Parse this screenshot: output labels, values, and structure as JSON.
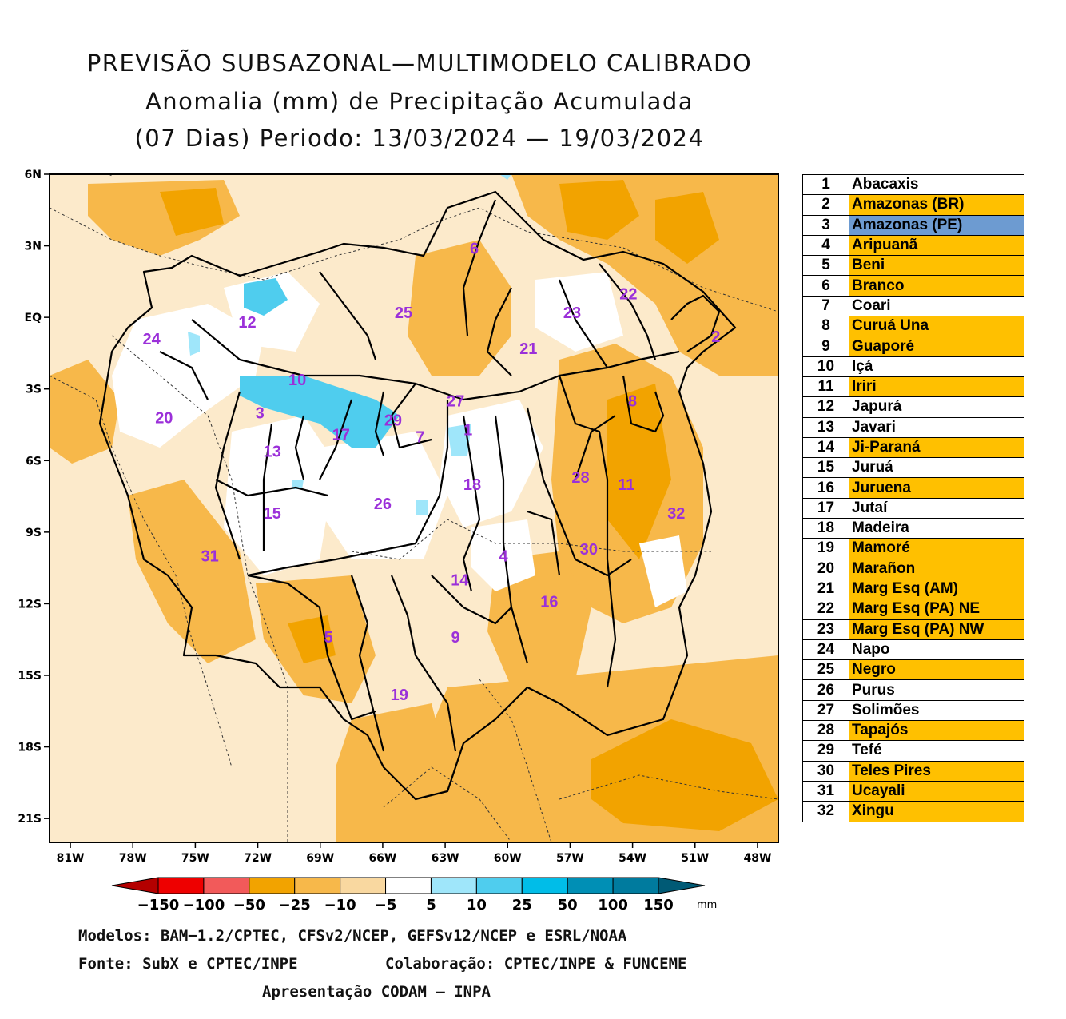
{
  "title": {
    "line1": "PREVISÃO SUBSAZONAL—MULTIMODELO CALIBRADO",
    "line2": "Anomalia (mm) de Precipitação Acumulada",
    "line3": "(07 Dias) Periodo: 13/03/2024 — 19/03/2024"
  },
  "axes": {
    "lat_labels": [
      "6N",
      "3N",
      "EQ",
      "3S",
      "6S",
      "9S",
      "12S",
      "15S",
      "18S",
      "21S"
    ],
    "lon_labels": [
      "81W",
      "78W",
      "75W",
      "72W",
      "69W",
      "66W",
      "63W",
      "60W",
      "57W",
      "54W",
      "51W",
      "48W"
    ],
    "lat_range": [
      6,
      -22
    ],
    "lon_range": [
      -82,
      -47
    ]
  },
  "colorbar": {
    "unit": "mm",
    "ticks": [
      "−150",
      "−100",
      "−50",
      "−25",
      "−10",
      "−5",
      "5",
      "10",
      "25",
      "50",
      "100",
      "150"
    ],
    "colors": [
      "#b40000",
      "#ee0000",
      "#f25a5a",
      "#f2a300",
      "#f7b84a",
      "#f9d8a0",
      "#ffffff",
      "#9fe6fa",
      "#4fcdee",
      "#00bde8",
      "#008fb5",
      "#007b9e",
      "#005a75"
    ]
  },
  "map_labels": [
    {
      "n": "1",
      "lon": -61.9,
      "lat": -4.7
    },
    {
      "n": "2",
      "lon": -50.0,
      "lat": -0.8
    },
    {
      "n": "3",
      "lon": -71.9,
      "lat": -4.0
    },
    {
      "n": "4",
      "lon": -60.2,
      "lat": -10.0
    },
    {
      "n": "5",
      "lon": -68.6,
      "lat": -13.4
    },
    {
      "n": "6",
      "lon": -61.6,
      "lat": 2.9
    },
    {
      "n": "7",
      "lon": -64.2,
      "lat": -5.0
    },
    {
      "n": "8",
      "lon": -54.0,
      "lat": -3.5
    },
    {
      "n": "9",
      "lon": -62.5,
      "lat": -13.4
    },
    {
      "n": "10",
      "lon": -70.1,
      "lat": -2.6
    },
    {
      "n": "11",
      "lon": -54.3,
      "lat": -7.0
    },
    {
      "n": "12",
      "lon": -72.5,
      "lat": -0.2
    },
    {
      "n": "13",
      "lon": -71.3,
      "lat": -5.6
    },
    {
      "n": "14",
      "lon": -62.3,
      "lat": -11.0
    },
    {
      "n": "15",
      "lon": -71.3,
      "lat": -8.2
    },
    {
      "n": "16",
      "lon": -58.0,
      "lat": -11.9
    },
    {
      "n": "17",
      "lon": -68.0,
      "lat": -4.9
    },
    {
      "n": "18",
      "lon": -61.7,
      "lat": -7.0
    },
    {
      "n": "19",
      "lon": -65.2,
      "lat": -15.8
    },
    {
      "n": "20",
      "lon": -76.5,
      "lat": -4.2
    },
    {
      "n": "21",
      "lon": -59.0,
      "lat": -1.3
    },
    {
      "n": "22",
      "lon": -54.2,
      "lat": 1.0
    },
    {
      "n": "23",
      "lon": -56.9,
      "lat": 0.2
    },
    {
      "n": "24",
      "lon": -77.1,
      "lat": -0.9
    },
    {
      "n": "25",
      "lon": -65.0,
      "lat": 0.2
    },
    {
      "n": "26",
      "lon": -66.0,
      "lat": -7.8
    },
    {
      "n": "27",
      "lon": -62.5,
      "lat": -3.5
    },
    {
      "n": "28",
      "lon": -56.5,
      "lat": -6.7
    },
    {
      "n": "29",
      "lon": -65.5,
      "lat": -4.3
    },
    {
      "n": "30",
      "lon": -56.1,
      "lat": -9.7
    },
    {
      "n": "31",
      "lon": -74.3,
      "lat": -10.0
    },
    {
      "n": "32",
      "lon": -51.9,
      "lat": -8.2
    }
  ],
  "legend": [
    {
      "n": "1",
      "name": "Abacaxis",
      "color": "#ffffff"
    },
    {
      "n": "2",
      "name": "Amazonas (BR)",
      "color": "#ffc000"
    },
    {
      "n": "3",
      "name": "Amazonas (PE)",
      "color": "#6d9bd1"
    },
    {
      "n": "4",
      "name": "Aripuanã",
      "color": "#ffc000"
    },
    {
      "n": "5",
      "name": "Beni",
      "color": "#ffc000"
    },
    {
      "n": "6",
      "name": "Branco",
      "color": "#ffc000"
    },
    {
      "n": "7",
      "name": "Coari",
      "color": "#ffffff"
    },
    {
      "n": "8",
      "name": "Curuá Una",
      "color": "#ffc000"
    },
    {
      "n": "9",
      "name": "Guaporé",
      "color": "#ffc000"
    },
    {
      "n": "10",
      "name": "Içá",
      "color": "#ffffff"
    },
    {
      "n": "11",
      "name": "Iriri",
      "color": "#ffc000"
    },
    {
      "n": "12",
      "name": "Japurá",
      "color": "#ffffff"
    },
    {
      "n": "13",
      "name": "Javari",
      "color": "#ffffff"
    },
    {
      "n": "14",
      "name": "Ji-Paraná",
      "color": "#ffc000"
    },
    {
      "n": "15",
      "name": "Juruá",
      "color": "#ffffff"
    },
    {
      "n": "16",
      "name": "Juruena",
      "color": "#ffc000"
    },
    {
      "n": "17",
      "name": "Jutaí",
      "color": "#ffffff"
    },
    {
      "n": "18",
      "name": "Madeira",
      "color": "#ffffff"
    },
    {
      "n": "19",
      "name": "Mamoré",
      "color": "#ffc000"
    },
    {
      "n": "20",
      "name": "Marañon",
      "color": "#ffc000"
    },
    {
      "n": "21",
      "name": "Marg Esq (AM)",
      "color": "#ffc000"
    },
    {
      "n": "22",
      "name": "Marg Esq (PA) NE",
      "color": "#ffc000"
    },
    {
      "n": "23",
      "name": "Marg Esq (PA) NW",
      "color": "#ffc000"
    },
    {
      "n": "24",
      "name": "Napo",
      "color": "#ffffff"
    },
    {
      "n": "25",
      "name": "Negro",
      "color": "#ffc000"
    },
    {
      "n": "26",
      "name": "Purus",
      "color": "#ffffff"
    },
    {
      "n": "27",
      "name": "Solimões",
      "color": "#ffffff"
    },
    {
      "n": "28",
      "name": "Tapajós",
      "color": "#ffc000"
    },
    {
      "n": "29",
      "name": "Tefé",
      "color": "#ffffff"
    },
    {
      "n": "30",
      "name": "Teles Pires",
      "color": "#ffc000"
    },
    {
      "n": "31",
      "name": "Ucayali",
      "color": "#ffc000"
    },
    {
      "n": "32",
      "name": "Xingu",
      "color": "#ffc000"
    }
  ],
  "footer": {
    "models": "Modelos: BAM−1.2/CPTEC, CFSv2/NCEP, GEFSv12/NCEP e ESRL/NOAA",
    "source": "Fonte: SubX e CPTEC/INPE",
    "collab": "Colaboração: CPTEC/INPE & FUNCEME",
    "presentation": "Apresentação CODAM — INPA"
  }
}
